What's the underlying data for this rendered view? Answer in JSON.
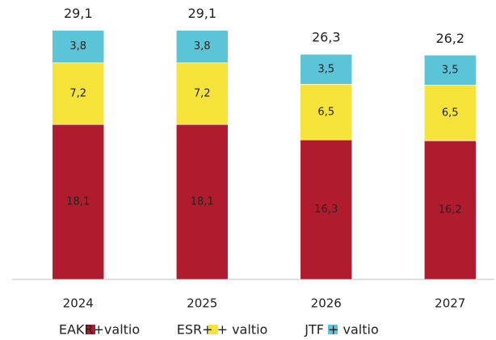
{
  "chart_data": {
    "type": "stacked_bar",
    "categories": [
      "2024",
      "2025",
      "2026",
      "2027"
    ],
    "series": [
      {
        "name": "EAKR+valtio",
        "color": "#b01c2e",
        "values": [
          18.1,
          18.1,
          16.3,
          16.2
        ],
        "value_labels": [
          "18,1",
          "18,1",
          "16,3",
          "16,2"
        ]
      },
      {
        "name": "ESR+ + valtio",
        "color": "#f7e43a",
        "values": [
          7.2,
          7.2,
          6.5,
          6.5
        ],
        "value_labels": [
          "7,2",
          "7,2",
          "6,5",
          "6,5"
        ]
      },
      {
        "name": "JTF + valtio",
        "color": "#5bc4d6",
        "values": [
          3.8,
          3.8,
          3.5,
          3.5
        ],
        "value_labels": [
          "3,8",
          "3,8",
          "3,5",
          "3,5"
        ]
      }
    ],
    "totals": [
      29.1,
      29.1,
      26.3,
      26.2
    ],
    "total_labels": [
      "29,1",
      "29,1",
      "26,3",
      "26,2"
    ],
    "ylim": [
      0,
      30
    ],
    "legend": "bottom"
  }
}
